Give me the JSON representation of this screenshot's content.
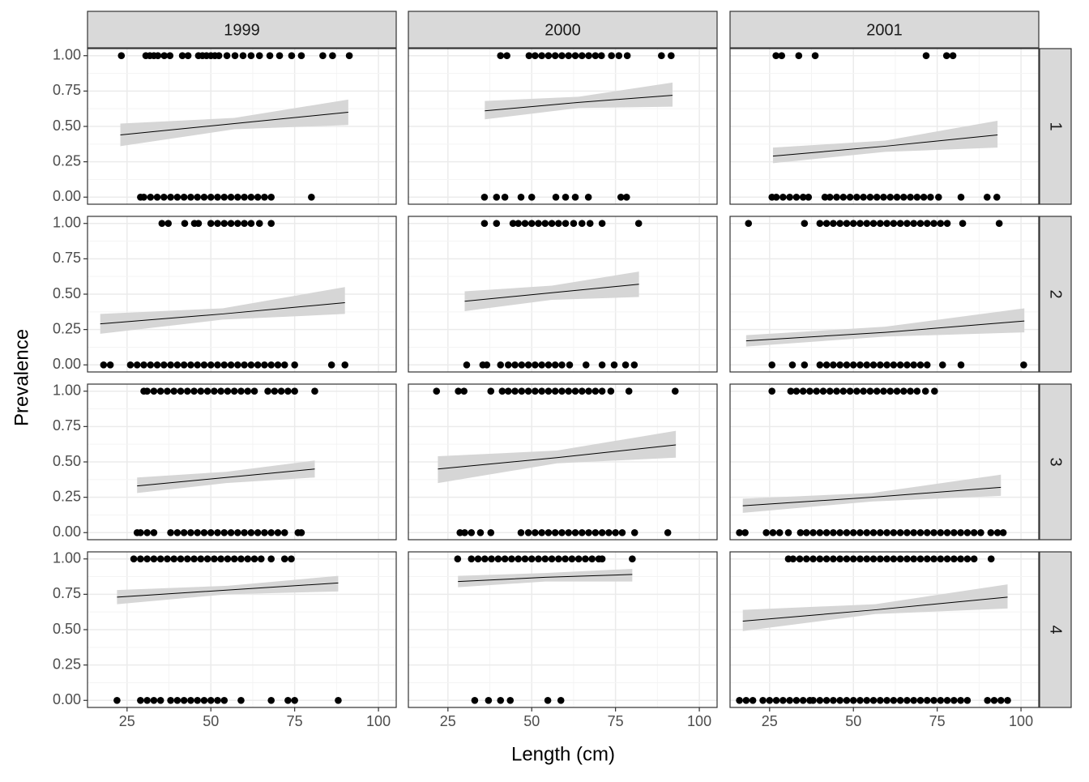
{
  "chart_data": {
    "type": "facet-logistic",
    "xlabel": "Length (cm)",
    "ylabel": "Prevalence",
    "columns": [
      "1999",
      "2000",
      "2001"
    ],
    "rows": [
      "1",
      "2",
      "3",
      "4"
    ],
    "xlim": [
      13.2,
      105.3
    ],
    "xticks": [
      25,
      50,
      75,
      100
    ],
    "ylim": [
      -0.05,
      1.05
    ],
    "yticks": [
      {
        "value": 0,
        "label": "0.00"
      },
      0.25,
      {
        "value": 0.5,
        "label": "0.50"
      },
      0.75,
      {
        "value": 1,
        "label": "1.00"
      }
    ],
    "grid": true,
    "point_color": "#000000",
    "line_color": "#000000",
    "ribbon_color": "#d6d6d6",
    "panels": [
      [
        {
          "points": [
            {
              "y": 1,
              "x": [
                23.3,
                30.6,
                31.8,
                33,
                34.2,
                36.1,
                37.8,
                41.5,
                43.2,
                46.3,
                47.5,
                48.7,
                50,
                51.2,
                52.4,
                54.8,
                57.2,
                59.6,
                62,
                64.5,
                67.6,
                70.5,
                74.1,
                77,
                83.4,
                86.3,
                91.3
              ]
            },
            {
              "y": 0,
              "x": [
                29,
                30,
                32,
                34,
                36,
                38,
                40,
                42,
                44,
                46,
                48,
                50,
                52,
                54,
                56,
                58,
                60,
                62,
                64,
                66,
                68,
                80
              ]
            }
          ],
          "fit": {
            "x": [
              23,
              57,
              91
            ],
            "values": [
              0.44,
              0.52,
              0.6
            ],
            "lower": [
              0.36,
              0.48,
              0.51
            ],
            "upper": [
              0.52,
              0.56,
              0.69
            ]
          }
        },
        {
          "points": [
            {
              "y": 1,
              "x": [
                40.7,
                42.6,
                49.2,
                51,
                53,
                55,
                57,
                59,
                61,
                63,
                65,
                67,
                69,
                70.8,
                73.8,
                76,
                78.5,
                88.7,
                91.6
              ]
            },
            {
              "y": 0,
              "x": [
                35.9,
                39.5,
                42,
                46.8,
                50,
                57.2,
                60.1,
                63,
                66.9,
                76.6,
                78.3
              ]
            }
          ],
          "fit": {
            "x": [
              36,
              64,
              92
            ],
            "values": [
              0.61,
              0.67,
              0.72
            ],
            "lower": [
              0.55,
              0.63,
              0.64
            ],
            "upper": [
              0.68,
              0.71,
              0.81
            ]
          }
        },
        {
          "points": [
            {
              "y": 1,
              "x": [
                26.9,
                28.6,
                33.7,
                38.6,
                71.7,
                77.8,
                79.7
              ]
            },
            {
              "y": 0,
              "x": [
                25.7,
                27,
                29,
                31,
                33,
                35,
                36.6,
                41.5,
                43,
                45,
                47,
                49,
                51,
                53,
                55,
                57,
                59,
                61,
                63,
                65,
                67,
                69,
                71,
                73,
                75.4,
                82.1,
                89.9,
                92.8
              ]
            }
          ],
          "fit": {
            "x": [
              26,
              59.5,
              93
            ],
            "values": [
              0.29,
              0.36,
              0.44
            ],
            "lower": [
              0.24,
              0.32,
              0.35
            ],
            "upper": [
              0.35,
              0.4,
              0.54
            ]
          }
        }
      ],
      [
        {
          "points": [
            {
              "y": 1,
              "x": [
                35.4,
                37.3,
                42.2,
                45.1,
                46.3,
                50,
                52,
                54,
                56,
                58,
                60,
                62,
                64.5,
                68
              ]
            },
            {
              "y": 0,
              "x": [
                18,
                20,
                26,
                28,
                30,
                32,
                34,
                36,
                38,
                40,
                42,
                44,
                46,
                48,
                50,
                52,
                54,
                56,
                58,
                60,
                62,
                64,
                66,
                68,
                70,
                72,
                75,
                86,
                90
              ]
            }
          ],
          "fit": {
            "x": [
              17,
              53.5,
              90
            ],
            "values": [
              0.29,
              0.36,
              0.44
            ],
            "lower": [
              0.22,
              0.32,
              0.36
            ],
            "upper": [
              0.36,
              0.4,
              0.55
            ]
          }
        },
        {
          "points": [
            {
              "y": 1,
              "x": [
                35.9,
                39.5,
                44.4,
                46,
                48,
                50,
                52,
                54,
                56,
                58,
                60.1,
                62.5,
                65,
                67.4,
                71,
                81.9
              ]
            },
            {
              "y": 0,
              "x": [
                30.6,
                35.4,
                36.6,
                40.7,
                43,
                45,
                47,
                49,
                51,
                53,
                55,
                57,
                59,
                61.3,
                66.2,
                71,
                74.6,
                78,
                80.6
              ]
            }
          ],
          "fit": {
            "x": [
              30,
              56,
              82
            ],
            "values": [
              0.45,
              0.51,
              0.57
            ],
            "lower": [
              0.38,
              0.46,
              0.48
            ],
            "upper": [
              0.52,
              0.56,
              0.66
            ]
          }
        },
        {
          "points": [
            {
              "y": 1,
              "x": [
                18.7,
                35.4,
                40,
                42,
                44,
                46,
                48,
                50,
                52,
                54,
                56,
                58,
                60,
                62,
                64,
                66,
                68,
                70,
                72,
                74,
                76,
                78,
                82.6,
                93.5
              ]
            },
            {
              "y": 0,
              "x": [
                25.7,
                31.8,
                35.4,
                40,
                42,
                44,
                46,
                48,
                50,
                52,
                54,
                56,
                58,
                60,
                62,
                64,
                66,
                68,
                70,
                72,
                76.6,
                82.1,
                100.8
              ]
            }
          ],
          "fit": {
            "x": [
              18,
              59.5,
              101
            ],
            "values": [
              0.17,
              0.23,
              0.31
            ],
            "lower": [
              0.13,
              0.2,
              0.23
            ],
            "upper": [
              0.21,
              0.27,
              0.4
            ]
          }
        }
      ],
      [
        {
          "points": [
            {
              "y": 1,
              "x": [
                30,
                31,
                33,
                35,
                37,
                39,
                41,
                43,
                45,
                47,
                49,
                51,
                53,
                55,
                57,
                59,
                61,
                63,
                67,
                69,
                71,
                73,
                75,
                81
              ]
            },
            {
              "y": 0,
              "x": [
                28,
                29,
                31,
                33,
                38,
                40,
                42,
                44,
                46,
                48,
                50,
                52,
                54,
                56,
                58,
                60,
                62,
                64,
                66,
                68,
                70,
                72,
                76,
                77
              ]
            }
          ],
          "fit": {
            "x": [
              28,
              54.5,
              81
            ],
            "values": [
              0.33,
              0.39,
              0.45
            ],
            "lower": [
              0.28,
              0.35,
              0.39
            ],
            "upper": [
              0.39,
              0.43,
              0.51
            ]
          }
        },
        {
          "points": [
            {
              "y": 1,
              "x": [
                21.6,
                28.1,
                29.8,
                37.8,
                41.2,
                43,
                45,
                47,
                49,
                51,
                53,
                55,
                57,
                59,
                61,
                63,
                65,
                67,
                69,
                71,
                73.6,
                79,
                92.8
              ]
            },
            {
              "y": 0,
              "x": [
                28.6,
                30,
                32,
                34.7,
                37.8,
                46.8,
                49,
                51,
                53,
                55,
                57,
                59,
                61,
                63,
                65,
                67,
                69,
                71,
                73,
                75,
                77,
                80.7,
                90.6
              ]
            }
          ],
          "fit": {
            "x": [
              22,
              57.5,
              93
            ],
            "values": [
              0.45,
              0.53,
              0.62
            ],
            "lower": [
              0.35,
              0.49,
              0.53
            ],
            "upper": [
              0.54,
              0.58,
              0.72
            ]
          }
        },
        {
          "points": [
            {
              "y": 1,
              "x": [
                25.7,
                31.3,
                33,
                35,
                37,
                39,
                41,
                43,
                45,
                47,
                49,
                51,
                53,
                55,
                57,
                59,
                61,
                63,
                65,
                67,
                69,
                71.5,
                74.2
              ]
            },
            {
              "y": 0,
              "x": [
                16,
                17.7,
                24,
                26,
                28,
                30.6,
                34.2,
                36,
                38,
                40,
                42,
                44,
                46,
                48,
                50,
                52,
                54,
                56,
                58,
                60,
                62,
                64,
                66,
                68,
                70,
                72,
                74,
                76,
                78,
                80,
                82,
                84,
                86,
                88,
                91,
                93,
                94.7
              ]
            }
          ],
          "fit": {
            "x": [
              17,
              55.5,
              94
            ],
            "values": [
              0.19,
              0.25,
              0.32
            ],
            "lower": [
              0.14,
              0.22,
              0.26
            ],
            "upper": [
              0.24,
              0.28,
              0.41
            ]
          }
        }
      ],
      [
        {
          "points": [
            {
              "y": 1,
              "x": [
                27,
                29,
                31,
                33,
                35,
                37,
                39,
                41,
                43,
                45,
                47,
                49,
                51,
                53,
                55,
                57,
                59,
                61,
                63,
                65,
                68,
                72,
                74
              ]
            },
            {
              "y": 0,
              "x": [
                22,
                29,
                31,
                33,
                35,
                38,
                40,
                42,
                44,
                46,
                48,
                50,
                52,
                54,
                59,
                68,
                73,
                75,
                88
              ]
            }
          ],
          "fit": {
            "x": [
              22,
              55,
              88
            ],
            "values": [
              0.73,
              0.78,
              0.83
            ],
            "lower": [
              0.68,
              0.75,
              0.77
            ],
            "upper": [
              0.78,
              0.81,
              0.88
            ]
          }
        },
        {
          "points": [
            {
              "y": 1,
              "x": [
                27.9,
                32,
                34,
                36,
                38,
                40,
                42,
                44,
                46,
                48,
                50,
                52,
                54,
                56,
                58,
                60,
                62,
                64,
                66,
                68,
                70,
                71,
                80
              ]
            },
            {
              "y": 0,
              "x": [
                33,
                37.1,
                40.7,
                43.6,
                54.8,
                58.7
              ]
            }
          ],
          "fit": {
            "x": [
              28,
              54,
              80
            ],
            "values": [
              0.84,
              0.87,
              0.89
            ],
            "lower": [
              0.8,
              0.84,
              0.84
            ],
            "upper": [
              0.88,
              0.9,
              0.93
            ]
          }
        },
        {
          "points": [
            {
              "y": 1,
              "x": [
                30.6,
                32,
                34,
                36,
                38,
                40,
                42,
                44,
                46,
                48,
                50,
                52,
                54,
                56,
                58,
                60,
                62,
                64,
                66,
                68,
                70,
                72,
                74,
                76,
                78,
                80,
                82,
                84,
                86,
                91.1
              ]
            },
            {
              "y": 0,
              "x": [
                16,
                18,
                20,
                23,
                25,
                27,
                29,
                31,
                33,
                35,
                37,
                38,
                40,
                42,
                44,
                46,
                48,
                50,
                52,
                54,
                56,
                58,
                60,
                62,
                64,
                66,
                68,
                70,
                72,
                74,
                76,
                78,
                80,
                82,
                84,
                90,
                92,
                94,
                96
              ]
            }
          ],
          "fit": {
            "x": [
              17,
              56.5,
              96
            ],
            "values": [
              0.56,
              0.64,
              0.73
            ],
            "lower": [
              0.49,
              0.61,
              0.65
            ],
            "upper": [
              0.64,
              0.68,
              0.82
            ]
          }
        }
      ]
    ]
  }
}
